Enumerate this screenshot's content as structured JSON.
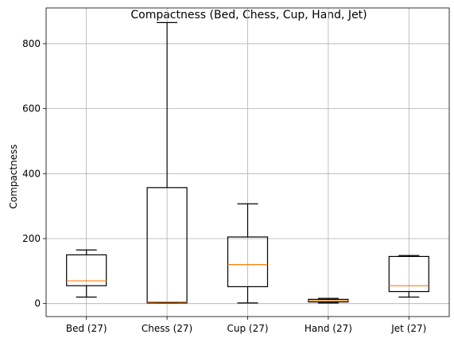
{
  "chart_data": {
    "type": "box",
    "title": "Compactness (Bed, Chess, Cup, Hand, Jet)",
    "xlabel": "",
    "ylabel": "Compactness",
    "ylim": [
      -40,
      910
    ],
    "yticks": [
      0,
      200,
      400,
      600,
      800
    ],
    "grid": true,
    "colors": {
      "box": "#000000",
      "median": "#ff7f0e",
      "grid": "#b0b0b0"
    },
    "categories": [
      "Bed (27)",
      "Chess (27)",
      "Cup (27)",
      "Hand (27)",
      "Jet (27)"
    ],
    "boxes": [
      {
        "label": "Bed (27)",
        "whisker_low": 20,
        "q1": 55,
        "median": 70,
        "q3": 150,
        "whisker_high": 165
      },
      {
        "label": "Chess (27)",
        "whisker_low": 2,
        "q1": 2,
        "median": 5,
        "q3": 357,
        "whisker_high": 865
      },
      {
        "label": "Cup (27)",
        "whisker_low": 2,
        "q1": 52,
        "median": 120,
        "q3": 205,
        "whisker_high": 307
      },
      {
        "label": "Hand (27)",
        "whisker_low": 2,
        "q1": 5,
        "median": 9,
        "q3": 13,
        "whisker_high": 16
      },
      {
        "label": "Jet (27)",
        "whisker_low": 20,
        "q1": 37,
        "median": 55,
        "q3": 145,
        "whisker_high": 148
      }
    ]
  }
}
